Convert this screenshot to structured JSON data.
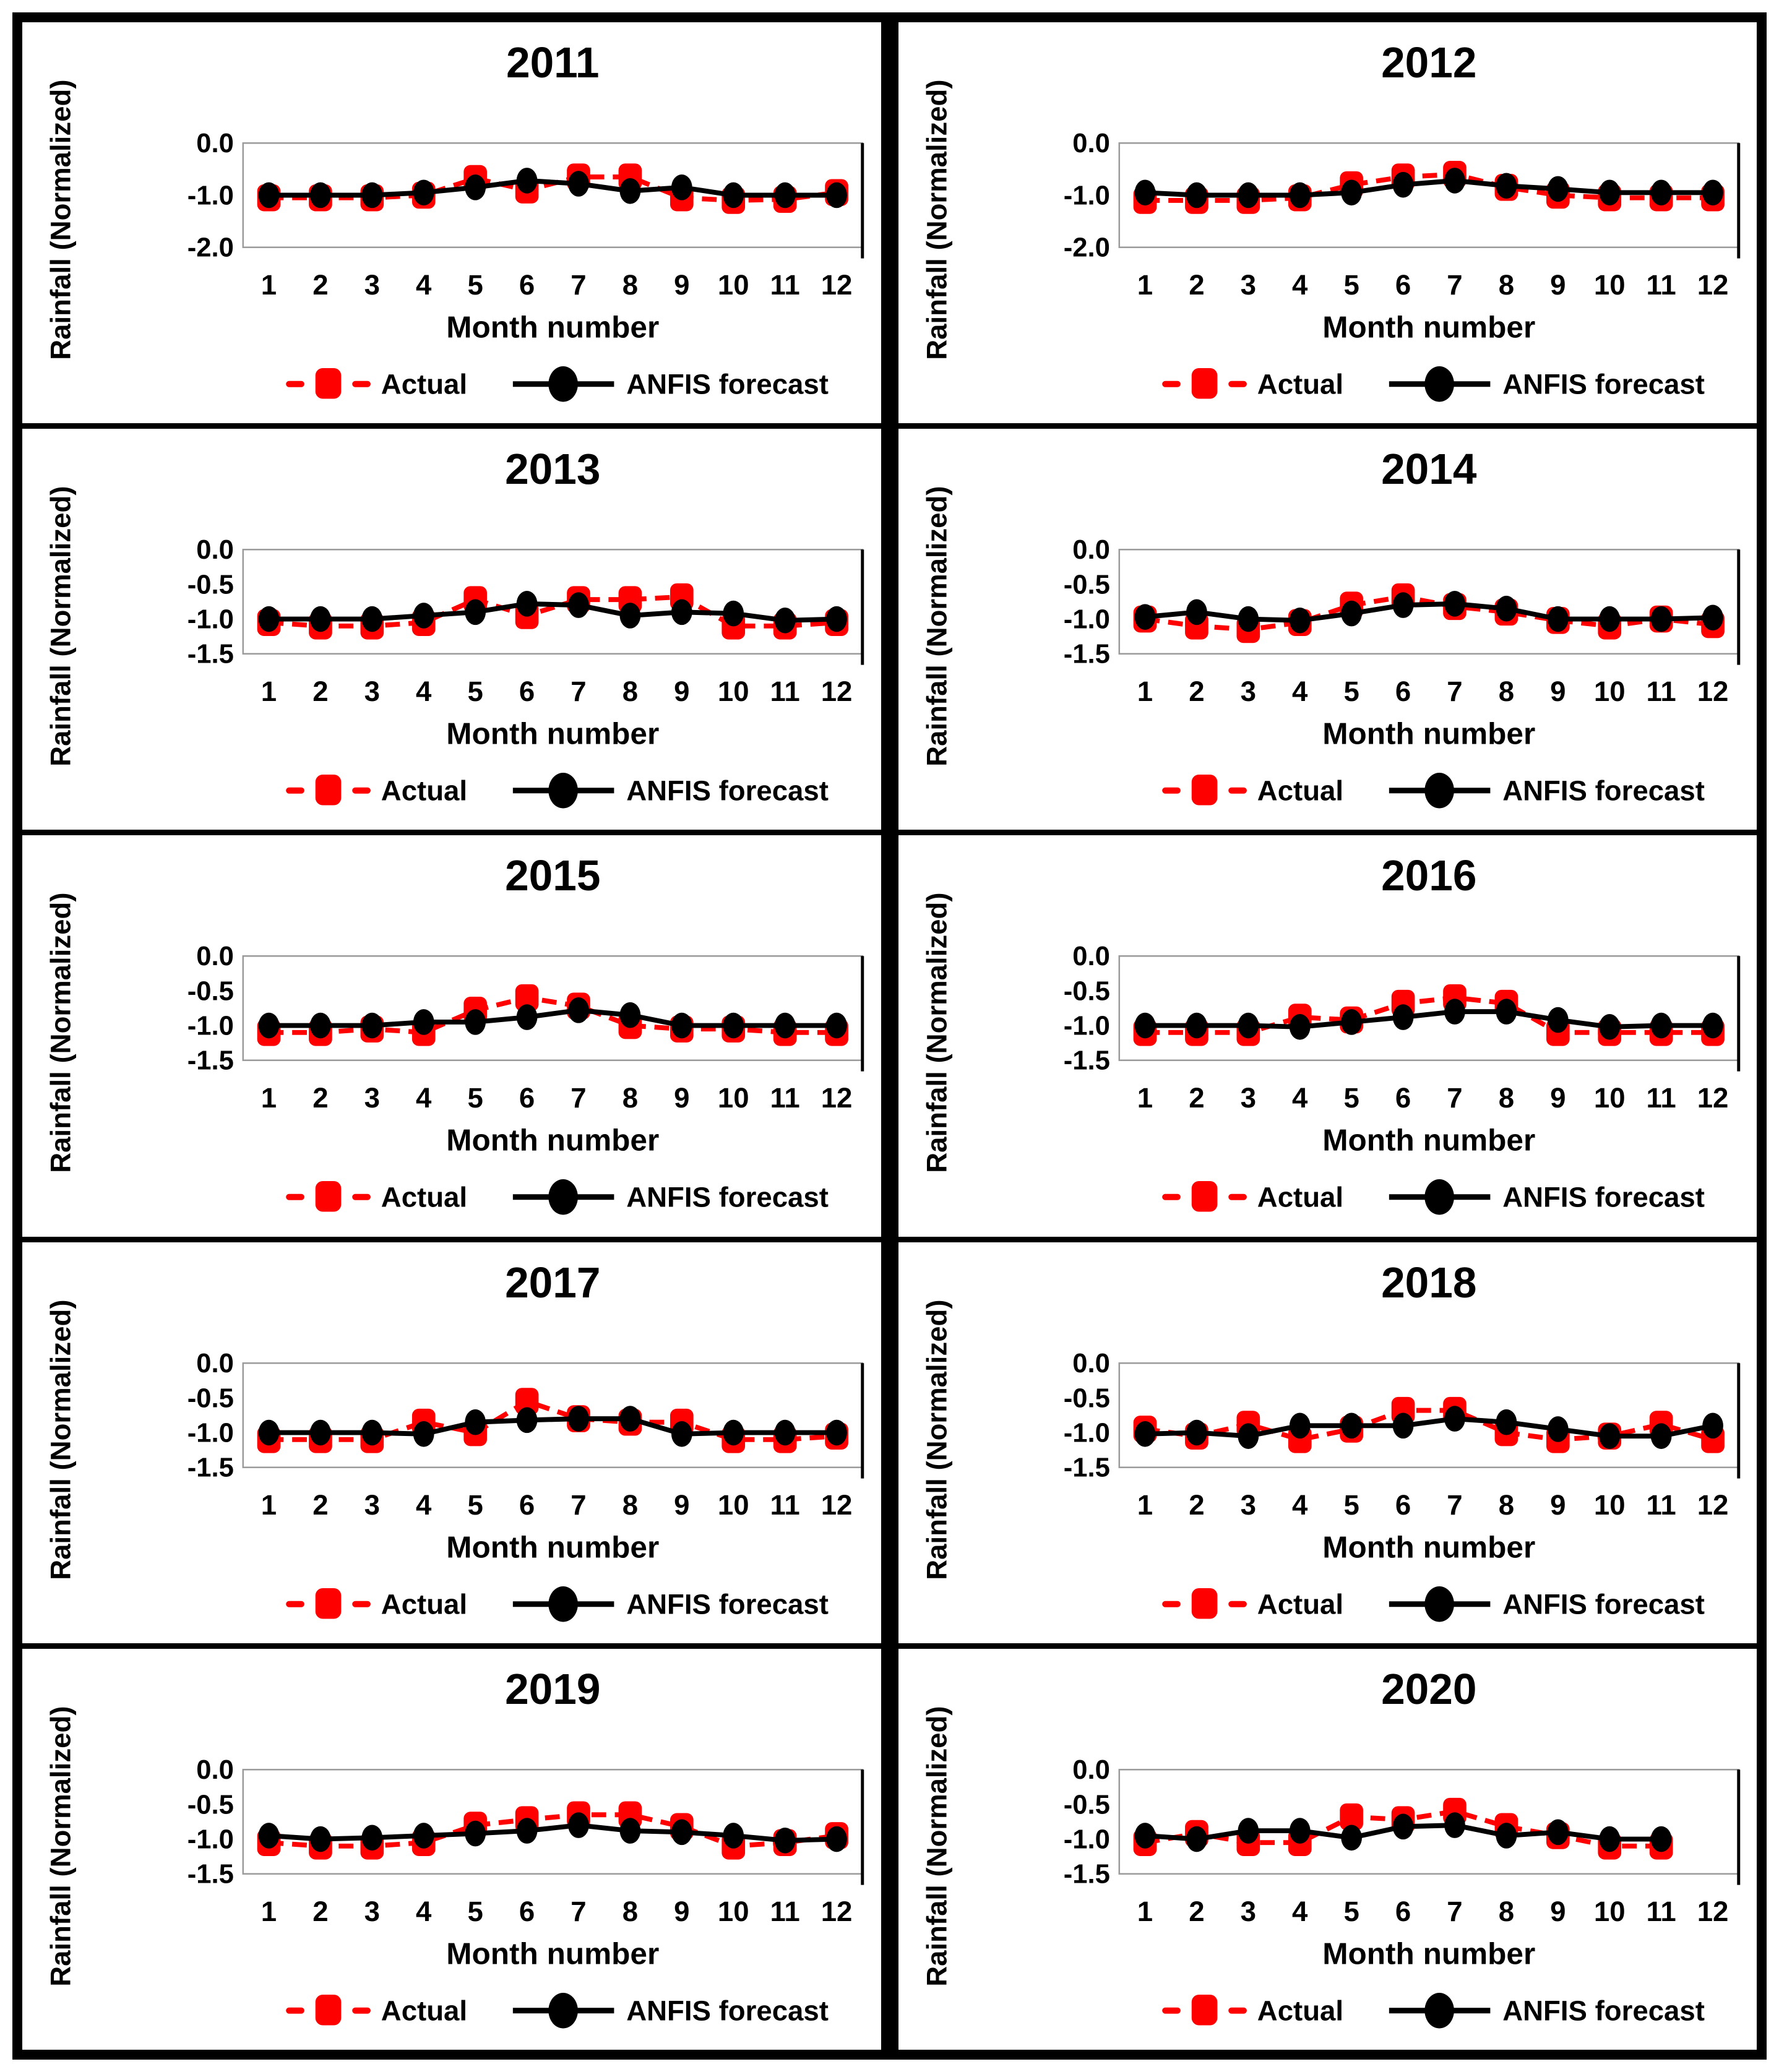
{
  "figure": {
    "background": "#ffffff",
    "border_color": "#000000",
    "actual_color": "#ff0000",
    "forecast_color": "#000000",
    "plot_frame_color": "#9a9a9a"
  },
  "legend": {
    "actual": "Actual",
    "forecast": "ANFIS forecast"
  },
  "axis": {
    "ylabel": "Rainfall (Normalized)",
    "xlabel": "Month number"
  },
  "chart_data": [
    {
      "type": "line",
      "title": "2011",
      "xlabel": "Month number",
      "ylabel": "Rainfall (Normalized)",
      "x": [
        1,
        2,
        3,
        4,
        5,
        6,
        7,
        8,
        9,
        10,
        11,
        12
      ],
      "xticks": [
        "1",
        "2",
        "3",
        "4",
        "5",
        "6",
        "7",
        "8",
        "9",
        "10",
        "11",
        "12"
      ],
      "ylim": [
        0.0,
        -2.0
      ],
      "yticks": [
        "0.0",
        "-1.0",
        "-2.0"
      ],
      "grid": false,
      "legend_position": "bottom",
      "series": [
        {
          "name": "Actual",
          "color": "#ff0000",
          "style": "dashed-square",
          "values": [
            -1.05,
            -1.05,
            -1.05,
            -1.0,
            -0.68,
            -0.9,
            -0.65,
            -0.65,
            -1.05,
            -1.1,
            -1.08,
            -0.95
          ]
        },
        {
          "name": "ANFIS forecast",
          "color": "#000000",
          "style": "solid-circle",
          "values": [
            -1.0,
            -1.0,
            -1.0,
            -0.95,
            -0.85,
            -0.72,
            -0.78,
            -0.92,
            -0.85,
            -1.0,
            -1.0,
            -1.0
          ]
        }
      ]
    },
    {
      "type": "line",
      "title": "2012",
      "xlabel": "Month number",
      "ylabel": "Rainfall (Normalized)",
      "x": [
        1,
        2,
        3,
        4,
        5,
        6,
        7,
        8,
        9,
        10,
        11,
        12
      ],
      "xticks": [
        "1",
        "2",
        "3",
        "4",
        "5",
        "6",
        "7",
        "8",
        "9",
        "10",
        "11",
        "12"
      ],
      "ylim": [
        0.0,
        -2.0
      ],
      "yticks": [
        "0.0",
        "-1.0",
        "-2.0"
      ],
      "grid": false,
      "legend_position": "bottom",
      "series": [
        {
          "name": "Actual",
          "color": "#ff0000",
          "style": "dashed-square",
          "values": [
            -1.1,
            -1.1,
            -1.1,
            -1.05,
            -0.8,
            -0.65,
            -0.6,
            -0.85,
            -1.0,
            -1.05,
            -1.05,
            -1.05
          ]
        },
        {
          "name": "ANFIS forecast",
          "color": "#000000",
          "style": "solid-circle",
          "values": [
            -0.95,
            -1.0,
            -1.0,
            -1.0,
            -0.95,
            -0.8,
            -0.72,
            -0.82,
            -0.88,
            -0.95,
            -0.95,
            -0.95
          ]
        }
      ]
    },
    {
      "type": "line",
      "title": "2013",
      "xlabel": "Month number",
      "ylabel": "Rainfall (Normalized)",
      "x": [
        1,
        2,
        3,
        4,
        5,
        6,
        7,
        8,
        9,
        10,
        11,
        12
      ],
      "xticks": [
        "1",
        "2",
        "3",
        "4",
        "5",
        "6",
        "7",
        "8",
        "9",
        "10",
        "11",
        "12"
      ],
      "ylim": [
        0.0,
        -1.5
      ],
      "yticks": [
        "0.0",
        "-0.5",
        "-1.0",
        "-1.5"
      ],
      "grid": false,
      "legend_position": "bottom",
      "series": [
        {
          "name": "Actual",
          "color": "#ff0000",
          "style": "dashed-square",
          "values": [
            -1.05,
            -1.1,
            -1.1,
            -1.05,
            -0.72,
            -0.95,
            -0.72,
            -0.72,
            -0.68,
            -1.1,
            -1.1,
            -1.05
          ]
        },
        {
          "name": "ANFIS forecast",
          "color": "#000000",
          "style": "solid-circle",
          "values": [
            -1.0,
            -1.0,
            -1.0,
            -0.95,
            -0.9,
            -0.78,
            -0.8,
            -0.95,
            -0.9,
            -0.92,
            -1.02,
            -1.0
          ]
        }
      ]
    },
    {
      "type": "line",
      "title": "2014",
      "xlabel": "Month number",
      "ylabel": "Rainfall (Normalized)",
      "x": [
        1,
        2,
        3,
        4,
        5,
        6,
        7,
        8,
        9,
        10,
        11,
        12
      ],
      "xticks": [
        "1",
        "2",
        "3",
        "4",
        "5",
        "6",
        "7",
        "8",
        "9",
        "10",
        "11",
        "12"
      ],
      "ylim": [
        0.0,
        -1.5
      ],
      "yticks": [
        "0.0",
        "-0.5",
        "-1.0",
        "-1.5"
      ],
      "grid": false,
      "legend_position": "bottom",
      "series": [
        {
          "name": "Actual",
          "color": "#ff0000",
          "style": "dashed-square",
          "values": [
            -1.0,
            -1.1,
            -1.15,
            -1.05,
            -0.8,
            -0.68,
            -0.82,
            -0.9,
            -1.02,
            -1.1,
            -1.0,
            -1.08
          ]
        },
        {
          "name": "ANFIS forecast",
          "color": "#000000",
          "style": "solid-circle",
          "values": [
            -0.97,
            -0.9,
            -1.0,
            -1.02,
            -0.92,
            -0.8,
            -0.78,
            -0.85,
            -1.0,
            -1.0,
            -1.0,
            -0.98
          ]
        }
      ]
    },
    {
      "type": "line",
      "title": "2015",
      "xlabel": "Month number",
      "ylabel": "Rainfall (Normalized)",
      "x": [
        1,
        2,
        3,
        4,
        5,
        6,
        7,
        8,
        9,
        10,
        11,
        12
      ],
      "xticks": [
        "1",
        "2",
        "3",
        "4",
        "5",
        "6",
        "7",
        "8",
        "9",
        "10",
        "11",
        "12"
      ],
      "ylim": [
        0.0,
        -1.5
      ],
      "yticks": [
        "0.0",
        "-0.5",
        "-1.0",
        "-1.5"
      ],
      "grid": false,
      "legend_position": "bottom",
      "series": [
        {
          "name": "Actual",
          "color": "#ff0000",
          "style": "dashed-square",
          "values": [
            -1.1,
            -1.1,
            -1.05,
            -1.1,
            -0.78,
            -0.6,
            -0.72,
            -1.0,
            -1.05,
            -1.05,
            -1.1,
            -1.1
          ]
        },
        {
          "name": "ANFIS forecast",
          "color": "#000000",
          "style": "solid-circle",
          "values": [
            -1.0,
            -1.0,
            -1.0,
            -0.95,
            -0.95,
            -0.88,
            -0.78,
            -0.85,
            -1.0,
            -1.0,
            -1.0,
            -1.0
          ]
        }
      ]
    },
    {
      "type": "line",
      "title": "2016",
      "xlabel": "Month number",
      "ylabel": "Rainfall (Normalized)",
      "x": [
        1,
        2,
        3,
        4,
        5,
        6,
        7,
        8,
        9,
        10,
        11,
        12
      ],
      "xticks": [
        "1",
        "2",
        "3",
        "4",
        "5",
        "6",
        "7",
        "8",
        "9",
        "10",
        "11",
        "12"
      ],
      "ylim": [
        0.0,
        -1.5
      ],
      "yticks": [
        "0.0",
        "-0.5",
        "-1.0",
        "-1.5"
      ],
      "grid": false,
      "legend_position": "bottom",
      "series": [
        {
          "name": "Actual",
          "color": "#ff0000",
          "style": "dashed-square",
          "values": [
            -1.1,
            -1.1,
            -1.1,
            -0.88,
            -0.92,
            -0.68,
            -0.6,
            -0.68,
            -1.1,
            -1.1,
            -1.1,
            -1.1
          ]
        },
        {
          "name": "ANFIS forecast",
          "color": "#000000",
          "style": "solid-circle",
          "values": [
            -1.0,
            -1.0,
            -1.0,
            -1.02,
            -0.95,
            -0.88,
            -0.8,
            -0.8,
            -0.92,
            -1.02,
            -1.0,
            -1.0
          ]
        }
      ]
    },
    {
      "type": "line",
      "title": "2017",
      "xlabel": "Month number",
      "ylabel": "Rainfall (Normalized)",
      "x": [
        1,
        2,
        3,
        4,
        5,
        6,
        7,
        8,
        9,
        10,
        11,
        12
      ],
      "xticks": [
        "1",
        "2",
        "3",
        "4",
        "5",
        "6",
        "7",
        "8",
        "9",
        "10",
        "11",
        "12"
      ],
      "ylim": [
        0.0,
        -1.5
      ],
      "yticks": [
        "0.0",
        "-0.5",
        "-1.0",
        "-1.5"
      ],
      "grid": false,
      "legend_position": "bottom",
      "series": [
        {
          "name": "Actual",
          "color": "#ff0000",
          "style": "dashed-square",
          "values": [
            -1.1,
            -1.1,
            -1.1,
            -0.85,
            -1.0,
            -0.55,
            -0.8,
            -0.85,
            -0.85,
            -1.1,
            -1.1,
            -1.05
          ]
        },
        {
          "name": "ANFIS forecast",
          "color": "#000000",
          "style": "solid-circle",
          "values": [
            -1.0,
            -1.0,
            -1.0,
            -1.02,
            -0.85,
            -0.82,
            -0.8,
            -0.8,
            -1.02,
            -1.0,
            -1.0,
            -1.0
          ]
        }
      ]
    },
    {
      "type": "line",
      "title": "2018",
      "xlabel": "Month number",
      "ylabel": "Rainfall (Normalized)",
      "x": [
        1,
        2,
        3,
        4,
        5,
        6,
        7,
        8,
        9,
        10,
        11,
        12
      ],
      "xticks": [
        "1",
        "2",
        "3",
        "4",
        "5",
        "6",
        "7",
        "8",
        "9",
        "10",
        "11",
        "12"
      ],
      "ylim": [
        0.0,
        -1.5
      ],
      "yticks": [
        "0.0",
        "-0.5",
        "-1.0",
        "-1.5"
      ],
      "grid": false,
      "legend_position": "bottom",
      "series": [
        {
          "name": "Actual",
          "color": "#ff0000",
          "style": "dashed-square",
          "values": [
            -0.95,
            -1.05,
            -0.88,
            -1.1,
            -0.95,
            -0.68,
            -0.68,
            -1.0,
            -1.1,
            -1.05,
            -0.88,
            -1.1
          ]
        },
        {
          "name": "ANFIS forecast",
          "color": "#000000",
          "style": "solid-circle",
          "values": [
            -1.02,
            -1.0,
            -1.05,
            -0.9,
            -0.9,
            -0.9,
            -0.8,
            -0.85,
            -0.95,
            -1.05,
            -1.05,
            -0.9
          ]
        }
      ]
    },
    {
      "type": "line",
      "title": "2019",
      "xlabel": "Month number",
      "ylabel": "Rainfall (Normalized)",
      "x": [
        1,
        2,
        3,
        4,
        5,
        6,
        7,
        8,
        9,
        10,
        11,
        12
      ],
      "xticks": [
        "1",
        "2",
        "3",
        "4",
        "5",
        "6",
        "7",
        "8",
        "9",
        "10",
        "11",
        "12"
      ],
      "ylim": [
        0.0,
        -1.5
      ],
      "yticks": [
        "0.0",
        "-0.5",
        "-1.0",
        "-1.5"
      ],
      "grid": false,
      "legend_position": "bottom",
      "series": [
        {
          "name": "Actual",
          "color": "#ff0000",
          "style": "dashed-square",
          "values": [
            -1.05,
            -1.1,
            -1.1,
            -1.05,
            -0.8,
            -0.72,
            -0.65,
            -0.65,
            -0.82,
            -1.1,
            -1.05,
            -0.95
          ]
        },
        {
          "name": "ANFIS forecast",
          "color": "#000000",
          "style": "solid-circle",
          "values": [
            -0.95,
            -1.0,
            -0.98,
            -0.95,
            -0.92,
            -0.88,
            -0.8,
            -0.88,
            -0.9,
            -0.95,
            -1.02,
            -1.0
          ]
        }
      ]
    },
    {
      "type": "line",
      "title": "2020",
      "xlabel": "Month number",
      "ylabel": "Rainfall (Normalized)",
      "x": [
        1,
        2,
        3,
        4,
        5,
        6,
        7,
        8,
        9,
        10,
        11,
        12
      ],
      "xticks": [
        "1",
        "2",
        "3",
        "4",
        "5",
        "6",
        "7",
        "8",
        "9",
        "10",
        "11",
        "12"
      ],
      "ylim": [
        0.0,
        -1.5
      ],
      "yticks": [
        "0.0",
        "-0.5",
        "-1.0",
        "-1.5"
      ],
      "grid": false,
      "legend_position": "bottom",
      "series": [
        {
          "name": "Actual",
          "color": "#ff0000",
          "style": "dashed-square",
          "values": [
            -1.05,
            -0.92,
            -1.05,
            -1.05,
            -0.68,
            -0.72,
            -0.6,
            -0.82,
            -0.95,
            -1.1,
            -1.1,
            null
          ]
        },
        {
          "name": "ANFIS forecast",
          "color": "#000000",
          "style": "solid-circle",
          "values": [
            -0.95,
            -1.0,
            -0.88,
            -0.88,
            -0.98,
            -0.82,
            -0.8,
            -0.95,
            -0.9,
            -1.0,
            -1.0,
            null
          ]
        }
      ]
    }
  ]
}
